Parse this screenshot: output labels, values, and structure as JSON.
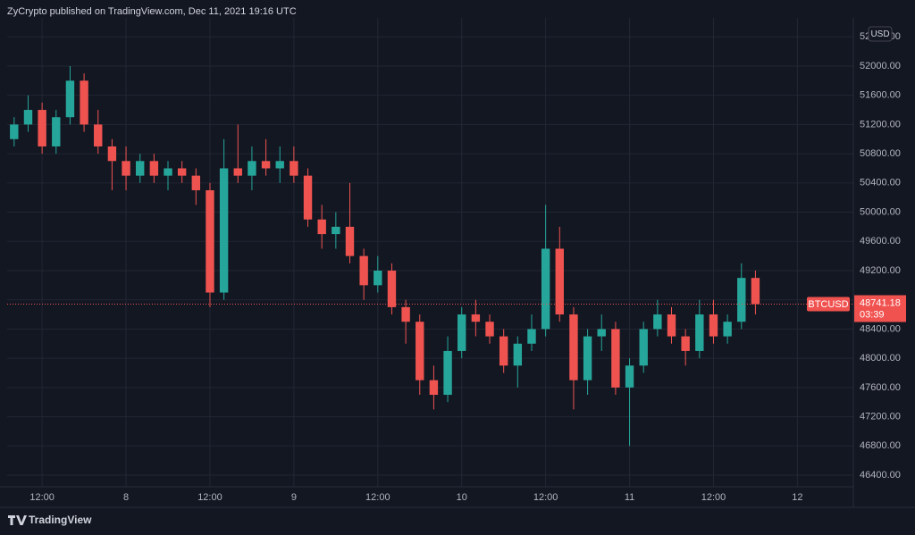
{
  "header": "ZyCrypto published on TradingView.com, Dec 11, 2021 19:16 UTC",
  "brand": "TradingView",
  "chart_data": {
    "type": "candlestick",
    "currency": "USD",
    "up_color": "#26a69a",
    "down_color": "#ef5350",
    "grid": true,
    "x": [
      "2021-12-07 08:00",
      "2021-12-07 10:00",
      "2021-12-07 12:00",
      "2021-12-07 14:00",
      "2021-12-07 16:00",
      "2021-12-07 18:00",
      "2021-12-07 20:00",
      "2021-12-07 22:00",
      "2021-12-08 00:00",
      "2021-12-08 02:00",
      "2021-12-08 04:00",
      "2021-12-08 06:00",
      "2021-12-08 08:00",
      "2021-12-08 10:00",
      "2021-12-08 12:00",
      "2021-12-08 14:00",
      "2021-12-08 16:00",
      "2021-12-08 18:00",
      "2021-12-08 20:00",
      "2021-12-08 22:00",
      "2021-12-09 00:00",
      "2021-12-09 02:00",
      "2021-12-09 04:00",
      "2021-12-09 06:00",
      "2021-12-09 08:00",
      "2021-12-09 10:00",
      "2021-12-09 12:00",
      "2021-12-09 14:00",
      "2021-12-09 16:00",
      "2021-12-09 18:00",
      "2021-12-09 20:00",
      "2021-12-09 22:00",
      "2021-12-10 00:00",
      "2021-12-10 02:00",
      "2021-12-10 04:00",
      "2021-12-10 06:00",
      "2021-12-10 08:00",
      "2021-12-10 10:00",
      "2021-12-10 12:00",
      "2021-12-10 14:00",
      "2021-12-10 16:00",
      "2021-12-10 18:00",
      "2021-12-10 20:00",
      "2021-12-10 22:00",
      "2021-12-11 00:00",
      "2021-12-11 02:00",
      "2021-12-11 04:00",
      "2021-12-11 06:00",
      "2021-12-11 08:00",
      "2021-12-11 10:00",
      "2021-12-11 12:00",
      "2021-12-11 14:00",
      "2021-12-11 16:00",
      "2021-12-11 18:00"
    ],
    "open": [
      51000,
      51200,
      51400,
      50900,
      51300,
      51800,
      51200,
      50900,
      50700,
      50500,
      50700,
      50500,
      50600,
      50500,
      50300,
      48900,
      50600,
      50500,
      50700,
      50600,
      50700,
      50500,
      49900,
      49700,
      49800,
      49400,
      49000,
      49200,
      48700,
      48500,
      47700,
      47500,
      48100,
      48600,
      48500,
      48300,
      47900,
      48200,
      48400,
      49500,
      48600,
      47700,
      48300,
      48400,
      47600,
      47900,
      48400,
      48600,
      48300,
      48100,
      48600,
      48300,
      48500,
      49100
    ],
    "high": [
      51300,
      51600,
      51500,
      51400,
      52000,
      51900,
      51400,
      51000,
      50900,
      50800,
      50800,
      50700,
      50700,
      50600,
      50400,
      51000,
      51200,
      50900,
      51000,
      50900,
      50900,
      50600,
      50100,
      50000,
      50400,
      49500,
      49400,
      49300,
      48800,
      48600,
      47900,
      48300,
      48700,
      48800,
      48600,
      48400,
      48300,
      48600,
      50100,
      49800,
      48700,
      48400,
      48600,
      48500,
      48000,
      48500,
      48800,
      48700,
      48400,
      48800,
      48800,
      48600,
      49300,
      49200
    ],
    "low": [
      50900,
      51100,
      50800,
      50800,
      51200,
      51100,
      50800,
      50300,
      50300,
      50400,
      50400,
      50300,
      50400,
      50100,
      48700,
      48800,
      50400,
      50300,
      50500,
      50400,
      50400,
      49800,
      49500,
      49500,
      49300,
      48800,
      48900,
      48600,
      48200,
      47500,
      47300,
      47400,
      48000,
      48300,
      48200,
      47800,
      47600,
      48100,
      48300,
      48500,
      47300,
      47500,
      48100,
      47500,
      46800,
      47800,
      48300,
      48200,
      47900,
      48000,
      48200,
      48200,
      48400,
      48600
    ],
    "close": [
      51200,
      51400,
      50900,
      51300,
      51800,
      51200,
      50900,
      50700,
      50500,
      50700,
      50500,
      50600,
      50500,
      50300,
      48900,
      50600,
      50500,
      50700,
      50600,
      50700,
      50500,
      49900,
      49700,
      49800,
      49400,
      49000,
      49200,
      48700,
      48500,
      47700,
      47500,
      48100,
      48600,
      48500,
      48300,
      47900,
      48200,
      48400,
      49500,
      48600,
      47700,
      48300,
      48400,
      47600,
      47900,
      48400,
      48600,
      48300,
      48100,
      48600,
      48300,
      48500,
      49100,
      48741.18
    ],
    "xlim": [
      "2021-12-07 07:00",
      "2021-12-12 08:00"
    ],
    "xticks": [
      {
        "value": "2021-12-07 12:00",
        "label": "12:00"
      },
      {
        "value": "2021-12-08 00:00",
        "label": "8"
      },
      {
        "value": "2021-12-08 12:00",
        "label": "12:00"
      },
      {
        "value": "2021-12-09 00:00",
        "label": "9"
      },
      {
        "value": "2021-12-09 12:00",
        "label": "12:00"
      },
      {
        "value": "2021-12-10 00:00",
        "label": "10"
      },
      {
        "value": "2021-12-10 12:00",
        "label": "12:00"
      },
      {
        "value": "2021-12-11 00:00",
        "label": "11"
      },
      {
        "value": "2021-12-11 12:00",
        "label": "12:00"
      },
      {
        "value": "2021-12-12 00:00",
        "label": "12"
      }
    ],
    "ylim": [
      46241,
      52660
    ],
    "yticks": [
      {
        "value": 46400,
        "label": "46400.00"
      },
      {
        "value": 46800,
        "label": "46800.00"
      },
      {
        "value": 47200,
        "label": "47200.00"
      },
      {
        "value": 47600,
        "label": "47600.00"
      },
      {
        "value": 48000,
        "label": "48000.00"
      },
      {
        "value": 48400,
        "label": "48400.00"
      },
      {
        "value": 48800,
        "label": "48800.00"
      },
      {
        "value": 49200,
        "label": "49200.00"
      },
      {
        "value": 49600,
        "label": "49600.00"
      },
      {
        "value": 50000,
        "label": "50000.00"
      },
      {
        "value": 50400,
        "label": "50400.00"
      },
      {
        "value": 50800,
        "label": "50800.00"
      },
      {
        "value": 51200,
        "label": "51200.00"
      },
      {
        "value": 51600,
        "label": "51600.00"
      },
      {
        "value": 52000,
        "label": "52000.00"
      },
      {
        "value": 52400,
        "label": "52400.00"
      }
    ],
    "last_price": {
      "value": 48741.18,
      "symbol": "BTCUSD",
      "countdown": "03:39",
      "color": "#f0524f"
    }
  }
}
